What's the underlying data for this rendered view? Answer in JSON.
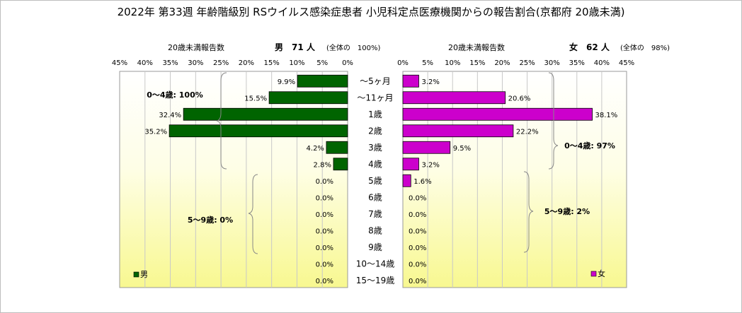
{
  "chart_data": {
    "type": "bar",
    "title": "2022年 第33週 年齢階級別 RSウイルス感染症患者 小児科定点医療機関からの報告割合(京都府 20歳未満)",
    "categories": [
      "～5ヶ月",
      "～11ヶ月",
      "1歳",
      "2歳",
      "3歳",
      "4歳",
      "5歳",
      "6歳",
      "7歳",
      "8歳",
      "9歳",
      "10～14歳",
      "15～19歳"
    ],
    "xlim": [
      0,
      45
    ],
    "ticks": [
      "45%",
      "40%",
      "35%",
      "30%",
      "25%",
      "20%",
      "15%",
      "10%",
      "5%",
      "0%"
    ],
    "ticks_right": [
      "0%",
      "5%",
      "10%",
      "15%",
      "20%",
      "25%",
      "30%",
      "35%",
      "40%",
      "45%"
    ],
    "grid": true,
    "legend": "bottom-left / bottom-right",
    "series": [
      {
        "name": "男",
        "side": "left",
        "axis_label": "20歳未満報告数",
        "total": "男　71 人",
        "share": "(全体の　100%)",
        "values": [
          9.9,
          15.5,
          32.4,
          35.2,
          4.2,
          2.8,
          0.0,
          0.0,
          0.0,
          0.0,
          0.0,
          0.0,
          0.0
        ],
        "labels": [
          "9.9%",
          "15.5%",
          "32.4%",
          "35.2%",
          "4.2%",
          "2.8%",
          "0.0%",
          "0.0%",
          "0.0%",
          "0.0%",
          "0.0%",
          "0.0%",
          "0.0%"
        ],
        "color": "#006400"
      },
      {
        "name": "女",
        "side": "right",
        "axis_label": "20歳未満報告数",
        "total": "女　62 人",
        "share": "(全体の　98%)",
        "values": [
          3.2,
          20.6,
          38.1,
          22.2,
          9.5,
          3.2,
          1.6,
          0.0,
          0.0,
          0.0,
          0.0,
          0.0,
          0.0
        ],
        "labels": [
          "3.2%",
          "20.6%",
          "38.1%",
          "22.2%",
          "9.5%",
          "3.2%",
          "1.6%",
          "0.0%",
          "0.0%",
          "0.0%",
          "0.0%",
          "0.0%",
          "0.0%"
        ],
        "color": "#cc00cc"
      }
    ],
    "annotations": {
      "male_0_4": "0～4歳: 100%",
      "male_5_9": "5～9歳: 0%",
      "female_0_4": "0～4歳: 97%",
      "female_5_9": "5～9歳: 2%"
    }
  }
}
